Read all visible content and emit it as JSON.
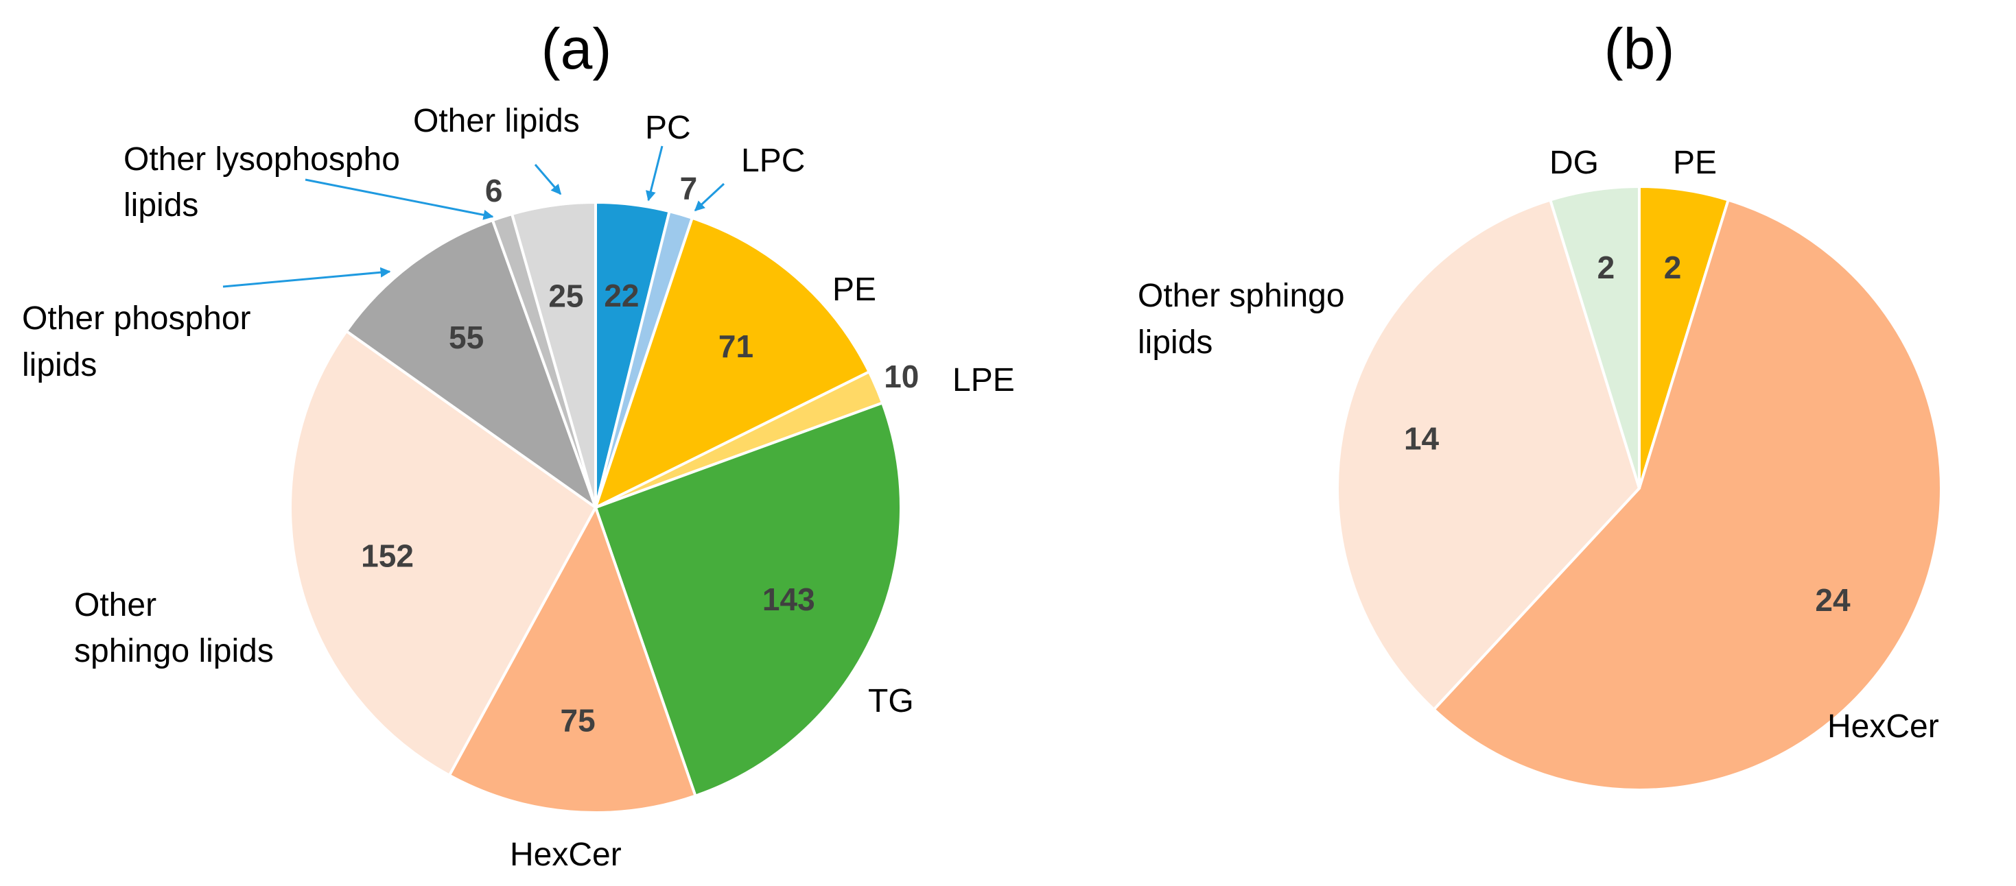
{
  "chart_data": [
    {
      "type": "pie",
      "title": "(a)",
      "slices": [
        {
          "label": "PC",
          "value": 22,
          "color": "#1a9ad6"
        },
        {
          "label": "LPC",
          "value": 7,
          "color": "#9dc9ec"
        },
        {
          "label": "PE",
          "value": 71,
          "color": "#ffc000"
        },
        {
          "label": "LPE",
          "value": 10,
          "color": "#ffd966"
        },
        {
          "label": "TG",
          "value": 143,
          "color": "#46ad3c"
        },
        {
          "label": "HexCer",
          "value": 75,
          "color": "#fdb383"
        },
        {
          "label": "Other sphingo lipids",
          "value": 152,
          "color": "#fde5d6"
        },
        {
          "label": "Other phosphor lipids",
          "value": 55,
          "color": "#a6a6a6"
        },
        {
          "label": "Other lysophospho lipids",
          "value": 6,
          "color": "#c0c0c0"
        },
        {
          "label": "Other lipids",
          "value": 25,
          "color": "#d9d9d9"
        }
      ]
    },
    {
      "type": "pie",
      "title": "(b)",
      "slices": [
        {
          "label": "PE",
          "value": 2,
          "color": "#ffc000"
        },
        {
          "label": "HexCer",
          "value": 24,
          "color": "#fdb383"
        },
        {
          "label": "Other sphingo lipids",
          "value": 14,
          "color": "#fde5d6"
        },
        {
          "label": "DG",
          "value": 2,
          "color": "#dcefdb"
        }
      ]
    }
  ],
  "labels_a": {
    "pc": "PC",
    "lpc": "LPC",
    "pe": "PE",
    "lpe": "LPE",
    "tg": "TG",
    "hexcer": "HexCer",
    "other_sphingo_l1": "Other",
    "other_sphingo_l2": "sphingo lipids",
    "other_phosphor_l1": "Other phosphor",
    "other_phosphor_l2": "lipids",
    "other_lyso_l1": "Other lysophospho",
    "other_lyso_l2": "lipids",
    "other_lipids": "Other lipids"
  },
  "labels_b": {
    "pe": "PE",
    "dg": "DG",
    "hexcer": "HexCer",
    "other_sphingo_l1": "Other sphingo",
    "other_sphingo_l2": "lipids"
  }
}
